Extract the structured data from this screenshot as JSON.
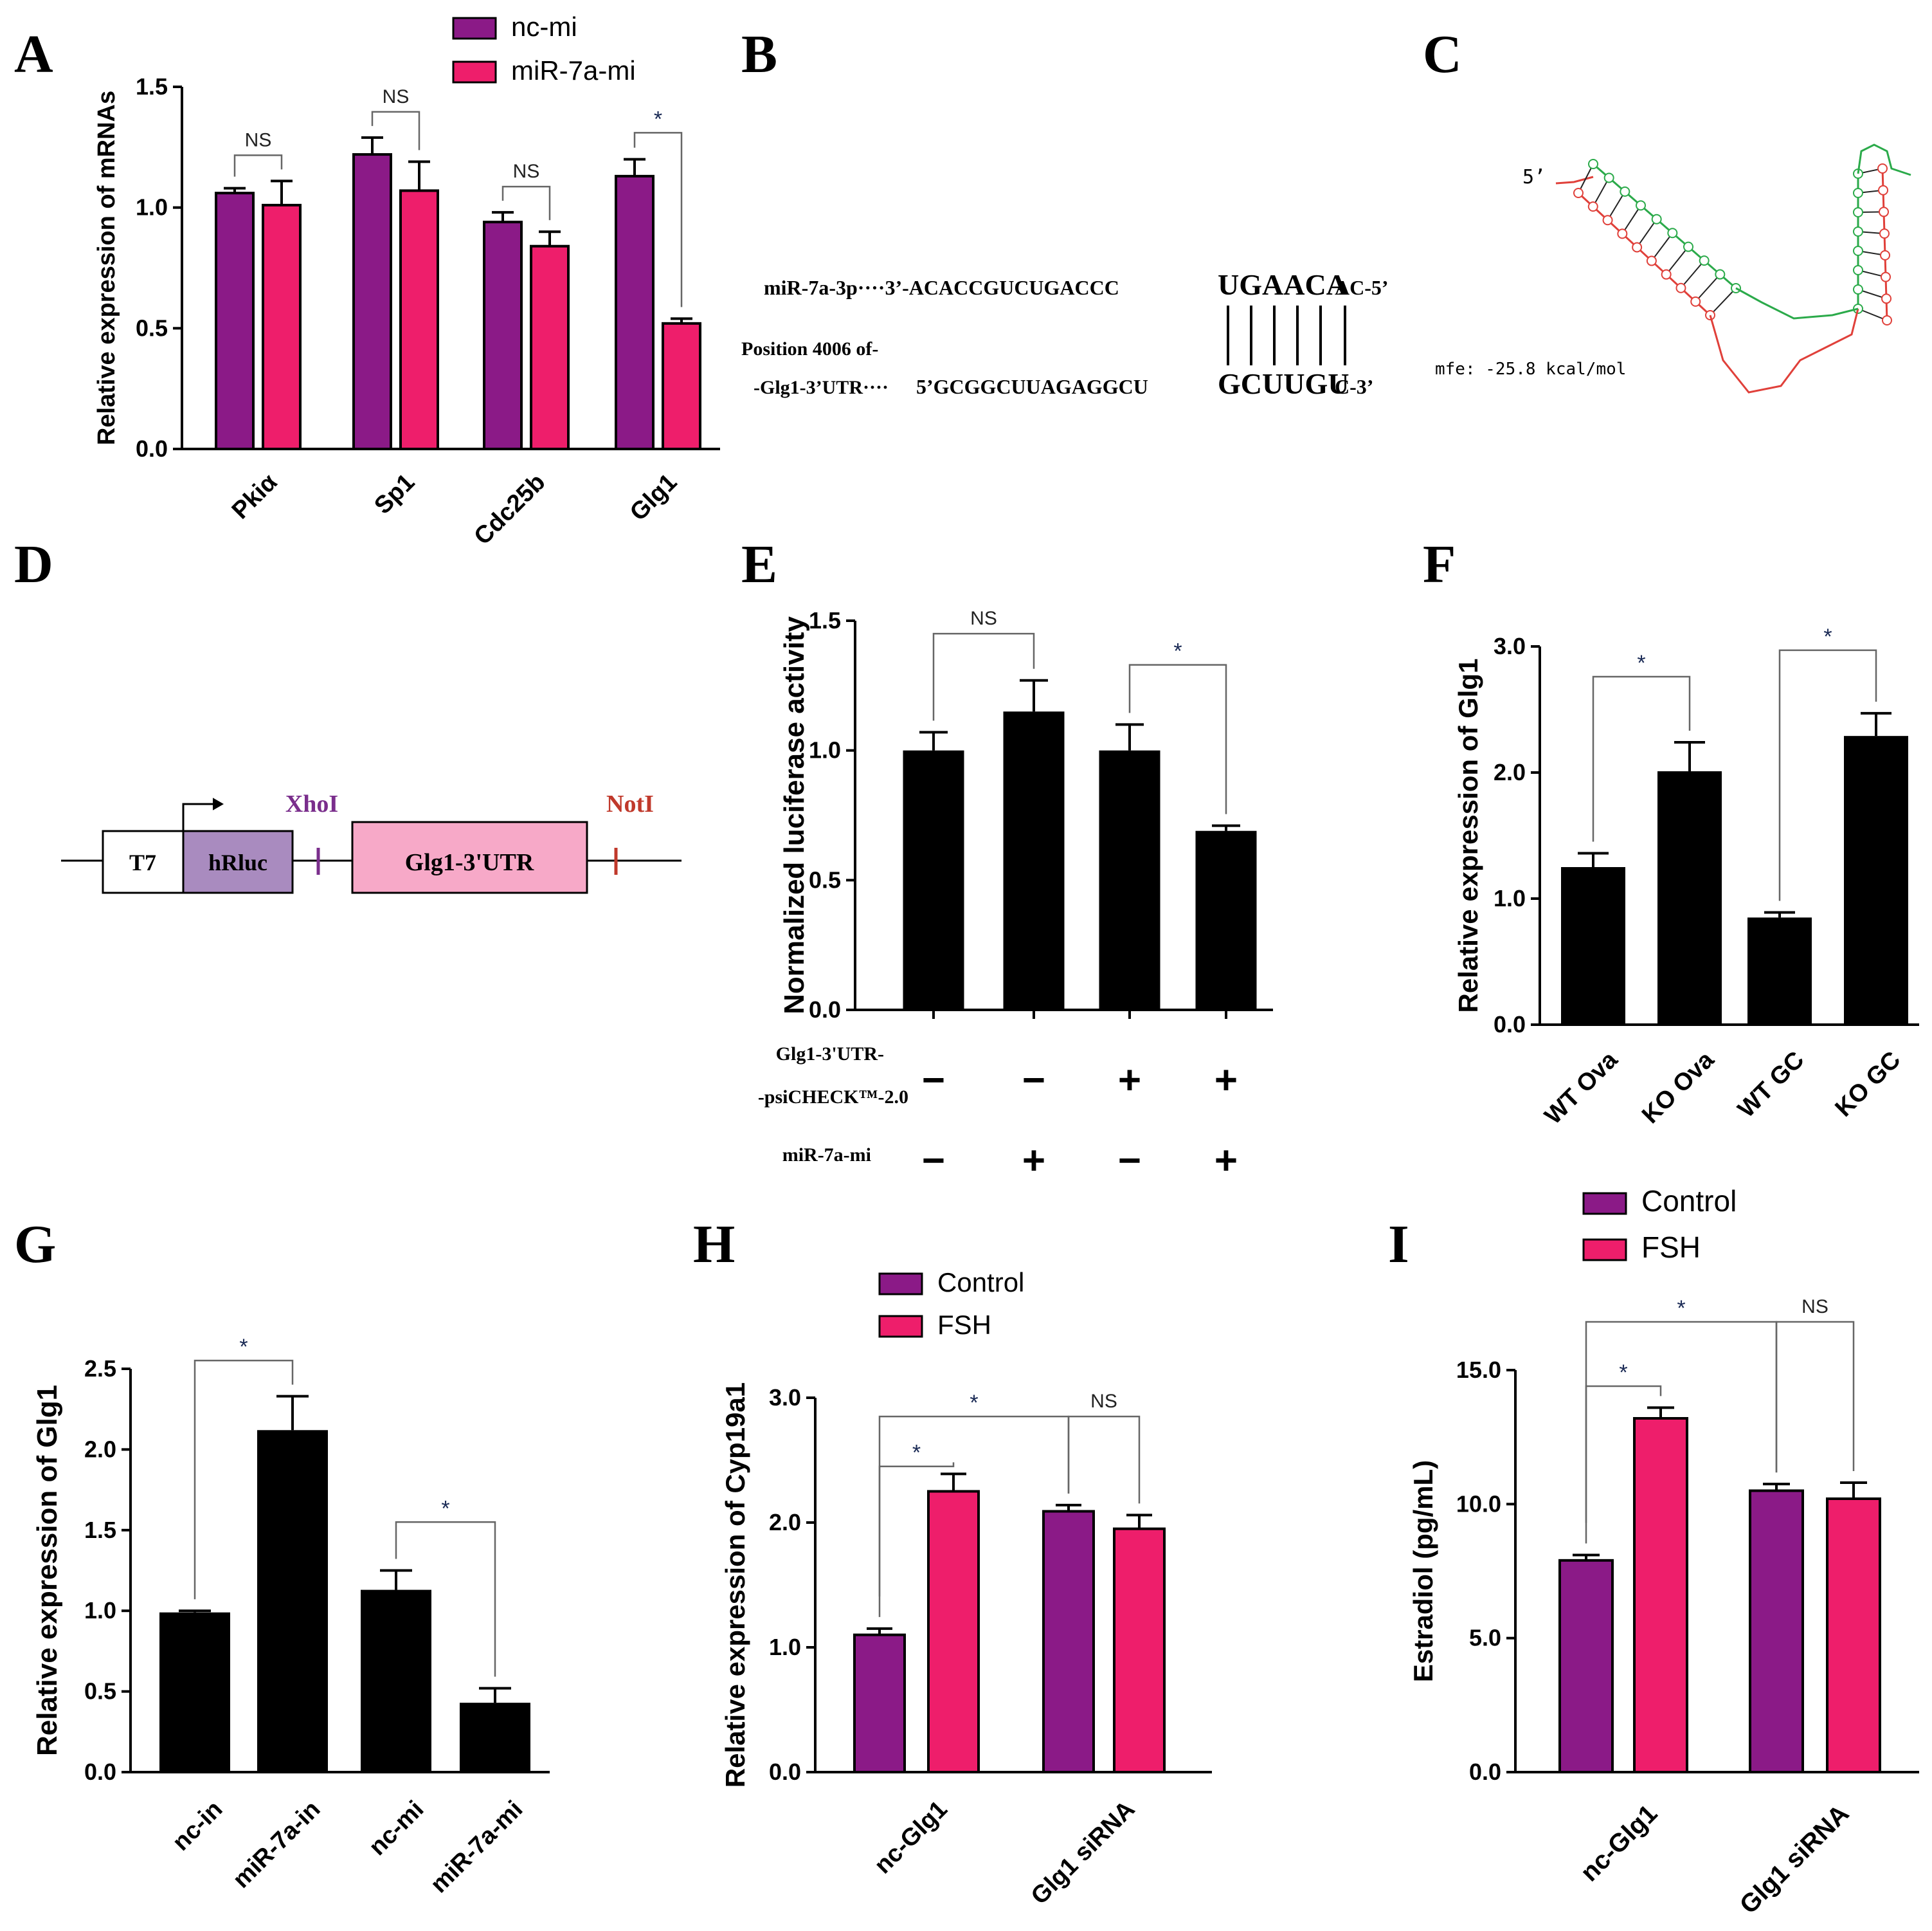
{
  "colors": {
    "purple": "#8B1A87",
    "pink": "#EE1E6B",
    "black": "#000000",
    "hrluc": "#A98BBF",
    "utr": "#F7A9C8",
    "xhoi": "#7A2E8C",
    "noti": "#C0392B",
    "struct_green": "#2BAA4A",
    "struct_red": "#E0403A"
  },
  "panel_labels": [
    "A",
    "B",
    "C",
    "D",
    "E",
    "F",
    "G",
    "H",
    "I"
  ],
  "chart_data": [
    {
      "id": "A",
      "type": "bar",
      "title": "",
      "xlabel": "",
      "ylabel": "Relative expression of mRNAs",
      "ylim": [
        0,
        1.5
      ],
      "yticks": [
        "0.0",
        "0.5",
        "1.0",
        "1.5"
      ],
      "categories": [
        "Pkiα",
        "Sp1",
        "Cdc25b",
        "Glg1"
      ],
      "series": [
        {
          "name": "nc-mi",
          "values": [
            1.06,
            1.22,
            0.94,
            1.13
          ],
          "errors": [
            0.02,
            0.07,
            0.04,
            0.07
          ]
        },
        {
          "name": "miR-7a-mi",
          "values": [
            1.01,
            1.07,
            0.84,
            0.52
          ],
          "errors": [
            0.1,
            0.12,
            0.06,
            0.02
          ]
        }
      ],
      "legend": [
        "nc-mi",
        "miR-7a-mi"
      ],
      "significance": [
        "NS",
        "NS",
        "NS",
        "*"
      ]
    },
    {
      "id": "E",
      "type": "bar",
      "title": "",
      "xlabel": "",
      "ylabel": "Normalized luciferase activity",
      "ylim": [
        0,
        1.5
      ],
      "yticks": [
        "0.0",
        "0.5",
        "1.0",
        "1.5"
      ],
      "values": [
        1.0,
        1.15,
        1.0,
        0.69
      ],
      "errors": [
        0.07,
        0.12,
        0.1,
        0.02
      ],
      "conditions": {
        "row1_label_line1": "Glg1-3'UTR-",
        "row1_label_line2": "-psiCHECK™-2.0",
        "row1": [
          "−",
          "−",
          "+",
          "+"
        ],
        "row2_label": "miR-7a-mi",
        "row2": [
          "−",
          "+",
          "−",
          "+"
        ]
      },
      "significance": [
        "NS",
        "*"
      ]
    },
    {
      "id": "F",
      "type": "bar",
      "title": "",
      "xlabel": "",
      "ylabel": "Relative expression of Glg1",
      "ylim": [
        0,
        3.0
      ],
      "yticks": [
        "0.0",
        "1.0",
        "2.0",
        "3.0"
      ],
      "categories": [
        "WT Ova",
        "KO Ova",
        "WT GC",
        "KO GC"
      ],
      "values": [
        1.25,
        2.01,
        0.85,
        2.29
      ],
      "errors": [
        0.11,
        0.23,
        0.04,
        0.18
      ],
      "significance": [
        "*",
        "*"
      ]
    },
    {
      "id": "G",
      "type": "bar",
      "title": "",
      "xlabel": "",
      "ylabel": "Relative expression of Glg1",
      "ylim": [
        0,
        2.5
      ],
      "yticks": [
        "0.0",
        "0.5",
        "1.0",
        "1.5",
        "2.0",
        "2.5"
      ],
      "categories": [
        "nc-in",
        "miR-7a-in",
        "nc-mi",
        "miR-7a-mi"
      ],
      "values": [
        0.99,
        2.12,
        1.13,
        0.43
      ],
      "errors": [
        0.01,
        0.21,
        0.12,
        0.09
      ],
      "significance": [
        "*",
        "*"
      ]
    },
    {
      "id": "H",
      "type": "bar",
      "title": "",
      "xlabel": "",
      "ylabel": "Relative expression of Cyp19a1",
      "ylim": [
        0,
        3.0
      ],
      "yticks": [
        "0.0",
        "1.0",
        "2.0",
        "3.0"
      ],
      "categories": [
        "nc-Glg1",
        "Glg1 siRNA"
      ],
      "series": [
        {
          "name": "Control",
          "values": [
            1.1,
            2.09
          ],
          "errors": [
            0.05,
            0.05
          ]
        },
        {
          "name": "FSH",
          "values": [
            2.25,
            1.95
          ],
          "errors": [
            0.14,
            0.11
          ]
        }
      ],
      "legend": [
        "Control",
        "FSH"
      ],
      "significance": [
        "*",
        "*",
        "NS"
      ]
    },
    {
      "id": "I",
      "type": "bar",
      "title": "",
      "xlabel": "",
      "ylabel": "Estradiol (pg/mL)",
      "ylim": [
        0,
        15.0
      ],
      "yticks": [
        "0.0",
        "5.0",
        "10.0",
        "15.0"
      ],
      "categories": [
        "nc-Glg1",
        "Glg1 siRNA"
      ],
      "series": [
        {
          "name": "Control",
          "values": [
            7.9,
            10.5
          ],
          "errors": [
            0.2,
            0.25
          ]
        },
        {
          "name": "FSH",
          "values": [
            13.2,
            10.2
          ],
          "errors": [
            0.4,
            0.6
          ]
        }
      ],
      "legend": [
        "Control",
        "FSH"
      ],
      "significance": [
        "*",
        "*",
        "NS"
      ]
    }
  ],
  "panel_b": {
    "mirna_label": "miR-7a-3p",
    "mirna_prefix": "3’-ACACCGUCUGACCC",
    "mirna_seed": "UGAACA",
    "mirna_suffix": "AC-5’",
    "position_label": "Position 4006 of-",
    "target_label": "-Glg1-3’UTR",
    "target_prefix": "5’GCGGCUUAGAGGCU",
    "target_seed": "GCUUGU",
    "target_suffix": "C-3’",
    "dots": "····"
  },
  "panel_c": {
    "five_prime": "5’",
    "mfe": "mfe: -25.8 kcal/mol"
  },
  "panel_d": {
    "t7": "T7",
    "hrluc": "hRluc",
    "xhoi": "XhoI",
    "utr": "Glg1-3'UTR",
    "noti": "NotI"
  }
}
